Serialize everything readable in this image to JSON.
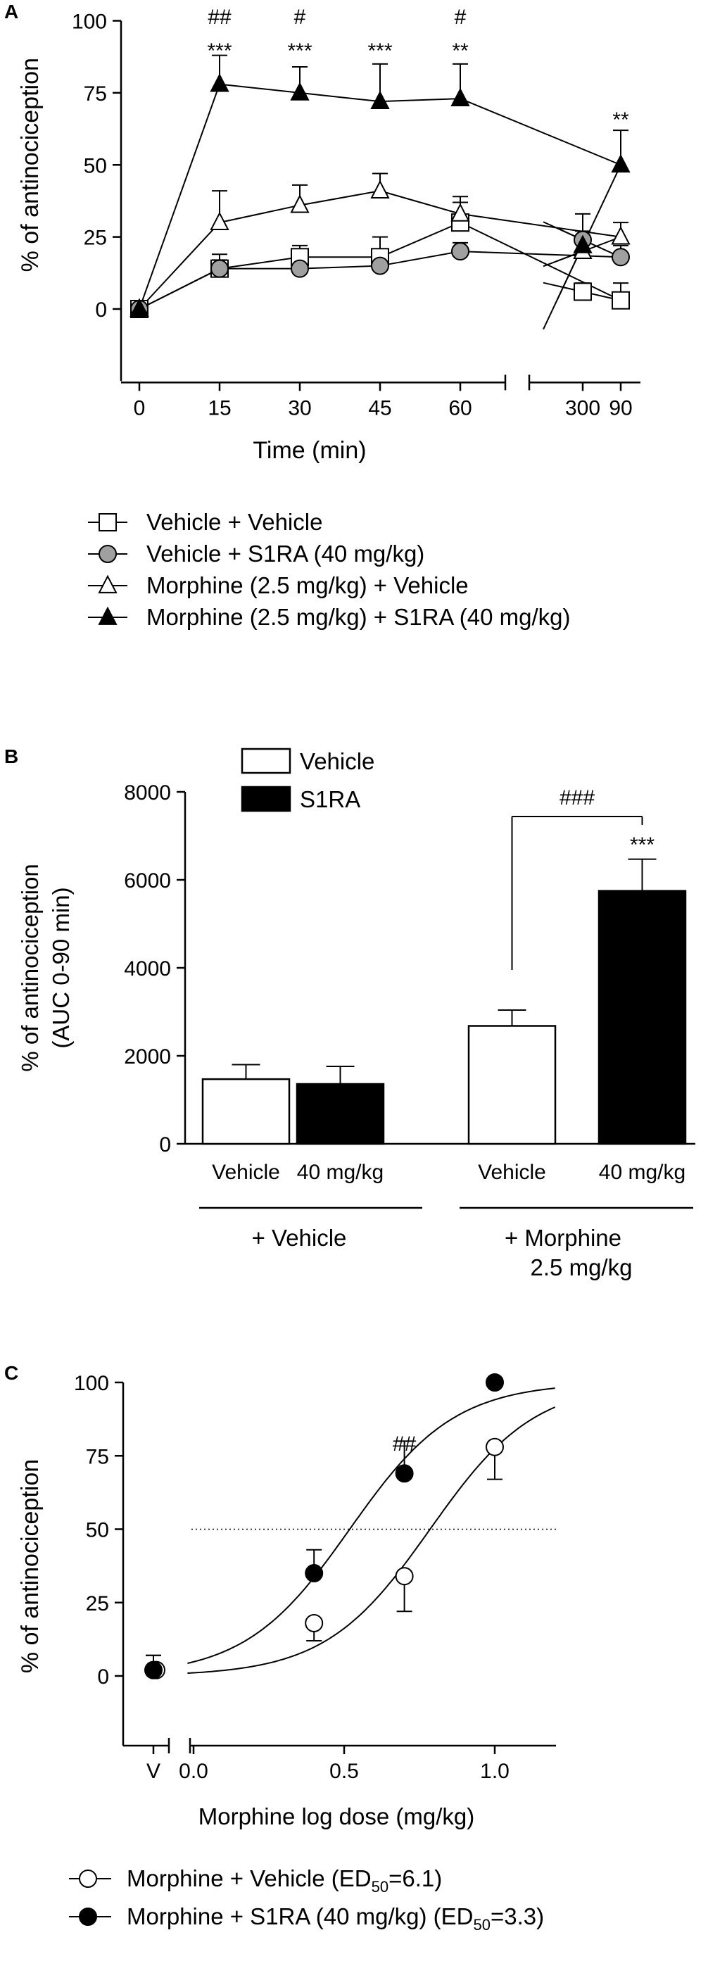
{
  "chart_data": [
    {
      "panel": "A",
      "type": "line",
      "xlabel": "Time (min)",
      "ylabel": "% of antinociception",
      "x": [
        0,
        15,
        30,
        45,
        60,
        90,
        300
      ],
      "x_tick_labels": [
        "0",
        "15",
        "30",
        "45",
        "60",
        "90",
        "300"
      ],
      "x_axis_break": "between 90 and 300",
      "ylim": [
        -25,
        100
      ],
      "y_ticks": [
        "0",
        "25",
        "50",
        "75",
        "100"
      ],
      "grid": false,
      "legend_position": "below",
      "series": [
        {
          "name": "Vehicle + Vehicle",
          "marker": "open-square",
          "values": [
            0,
            14,
            18,
            18,
            30,
            3,
            6
          ],
          "errors": [
            0,
            5,
            4,
            7,
            7,
            6,
            3
          ]
        },
        {
          "name": "Vehicle + S1RA (40 mg/kg)",
          "marker": "grey-circle",
          "values": [
            0,
            14,
            14,
            15,
            20,
            18,
            24
          ],
          "errors": [
            0,
            3,
            3,
            3,
            3,
            4,
            9
          ]
        },
        {
          "name": "Morphine (2.5 mg/kg) + Vehicle",
          "marker": "open-triangle",
          "values": [
            0,
            30,
            36,
            41,
            33,
            25,
            20
          ],
          "errors": [
            0,
            11,
            7,
            6,
            6,
            5,
            4
          ]
        },
        {
          "name": "Morphine (2.5 mg/kg) + S1RA (40 mg/kg)",
          "marker": "filled-triangle",
          "values": [
            0,
            78,
            75,
            72,
            73,
            50,
            22
          ],
          "errors": [
            0,
            10,
            9,
            13,
            12,
            12,
            5
          ]
        }
      ],
      "annotations": [
        {
          "x": 15,
          "labels": [
            "##",
            "***"
          ]
        },
        {
          "x": 30,
          "labels": [
            "#",
            "***"
          ]
        },
        {
          "x": 45,
          "labels": [
            "***"
          ]
        },
        {
          "x": 60,
          "labels": [
            "#",
            "**"
          ]
        },
        {
          "x": 90,
          "labels": [
            "**"
          ]
        }
      ]
    },
    {
      "panel": "B",
      "type": "bar",
      "ylabel": "% of antinociception",
      "ylabel2": "(AUC 0-90 min)",
      "ylim": [
        0,
        8000
      ],
      "y_ticks": [
        "0",
        "2000",
        "4000",
        "6000",
        "8000"
      ],
      "categories": [
        "Vehicle",
        "40 mg/kg",
        "Vehicle",
        "40 mg/kg"
      ],
      "groups": [
        {
          "label": "+ Vehicle",
          "label2": ""
        },
        {
          "label": "+ Morphine",
          "label2": "2.5 mg/kg"
        }
      ],
      "values": [
        1470,
        1360,
        2680,
        5750
      ],
      "errors": [
        330,
        400,
        360,
        720
      ],
      "fills": [
        "white",
        "black",
        "white",
        "black"
      ],
      "legend": [
        {
          "name": "Vehicle",
          "fill": "white"
        },
        {
          "name": "S1RA",
          "fill": "black"
        }
      ],
      "legend_position": "top-left",
      "annotations": {
        "bracket": "###",
        "star": "***"
      }
    },
    {
      "panel": "C",
      "type": "scatter",
      "xlabel": "Morphine log dose (mg/kg)",
      "ylabel": "% of antinociception",
      "x_ticks": [
        "0.0",
        "0.5",
        "1.0"
      ],
      "x_vehicle_tick": "V",
      "ylim": [
        -25,
        100
      ],
      "y_ticks": [
        "0",
        "25",
        "50",
        "75",
        "100"
      ],
      "reference_line": 50,
      "legend_position": "below",
      "series": [
        {
          "name_prefix": "Morphine + Vehicle (ED",
          "name_sub": "50",
          "name_suffix": "=6.1)",
          "marker": "open-circle",
          "x": [
            0.4,
            0.7,
            1.0
          ],
          "values": [
            18,
            34,
            78
          ],
          "errors": [
            6,
            12,
            11
          ],
          "vehicle": 2,
          "vehicle_error": 5,
          "ed50": 6.1
        },
        {
          "name_prefix": "Morphine + S1RA (40 mg/kg) (ED",
          "name_sub": "50",
          "name_suffix": "=3.3)",
          "marker": "filled-circle",
          "x": [
            0.4,
            0.7,
            1.0
          ],
          "values": [
            35,
            69,
            100
          ],
          "errors": [
            8,
            11,
            0
          ],
          "vehicle": 2,
          "vehicle_error": 5,
          "ed50": 3.3
        }
      ],
      "annotations": [
        {
          "x": 0.7,
          "label": "##"
        }
      ]
    }
  ],
  "panels": [
    {
      "letter": "A"
    },
    {
      "letter": "B"
    },
    {
      "letter": "C"
    }
  ]
}
